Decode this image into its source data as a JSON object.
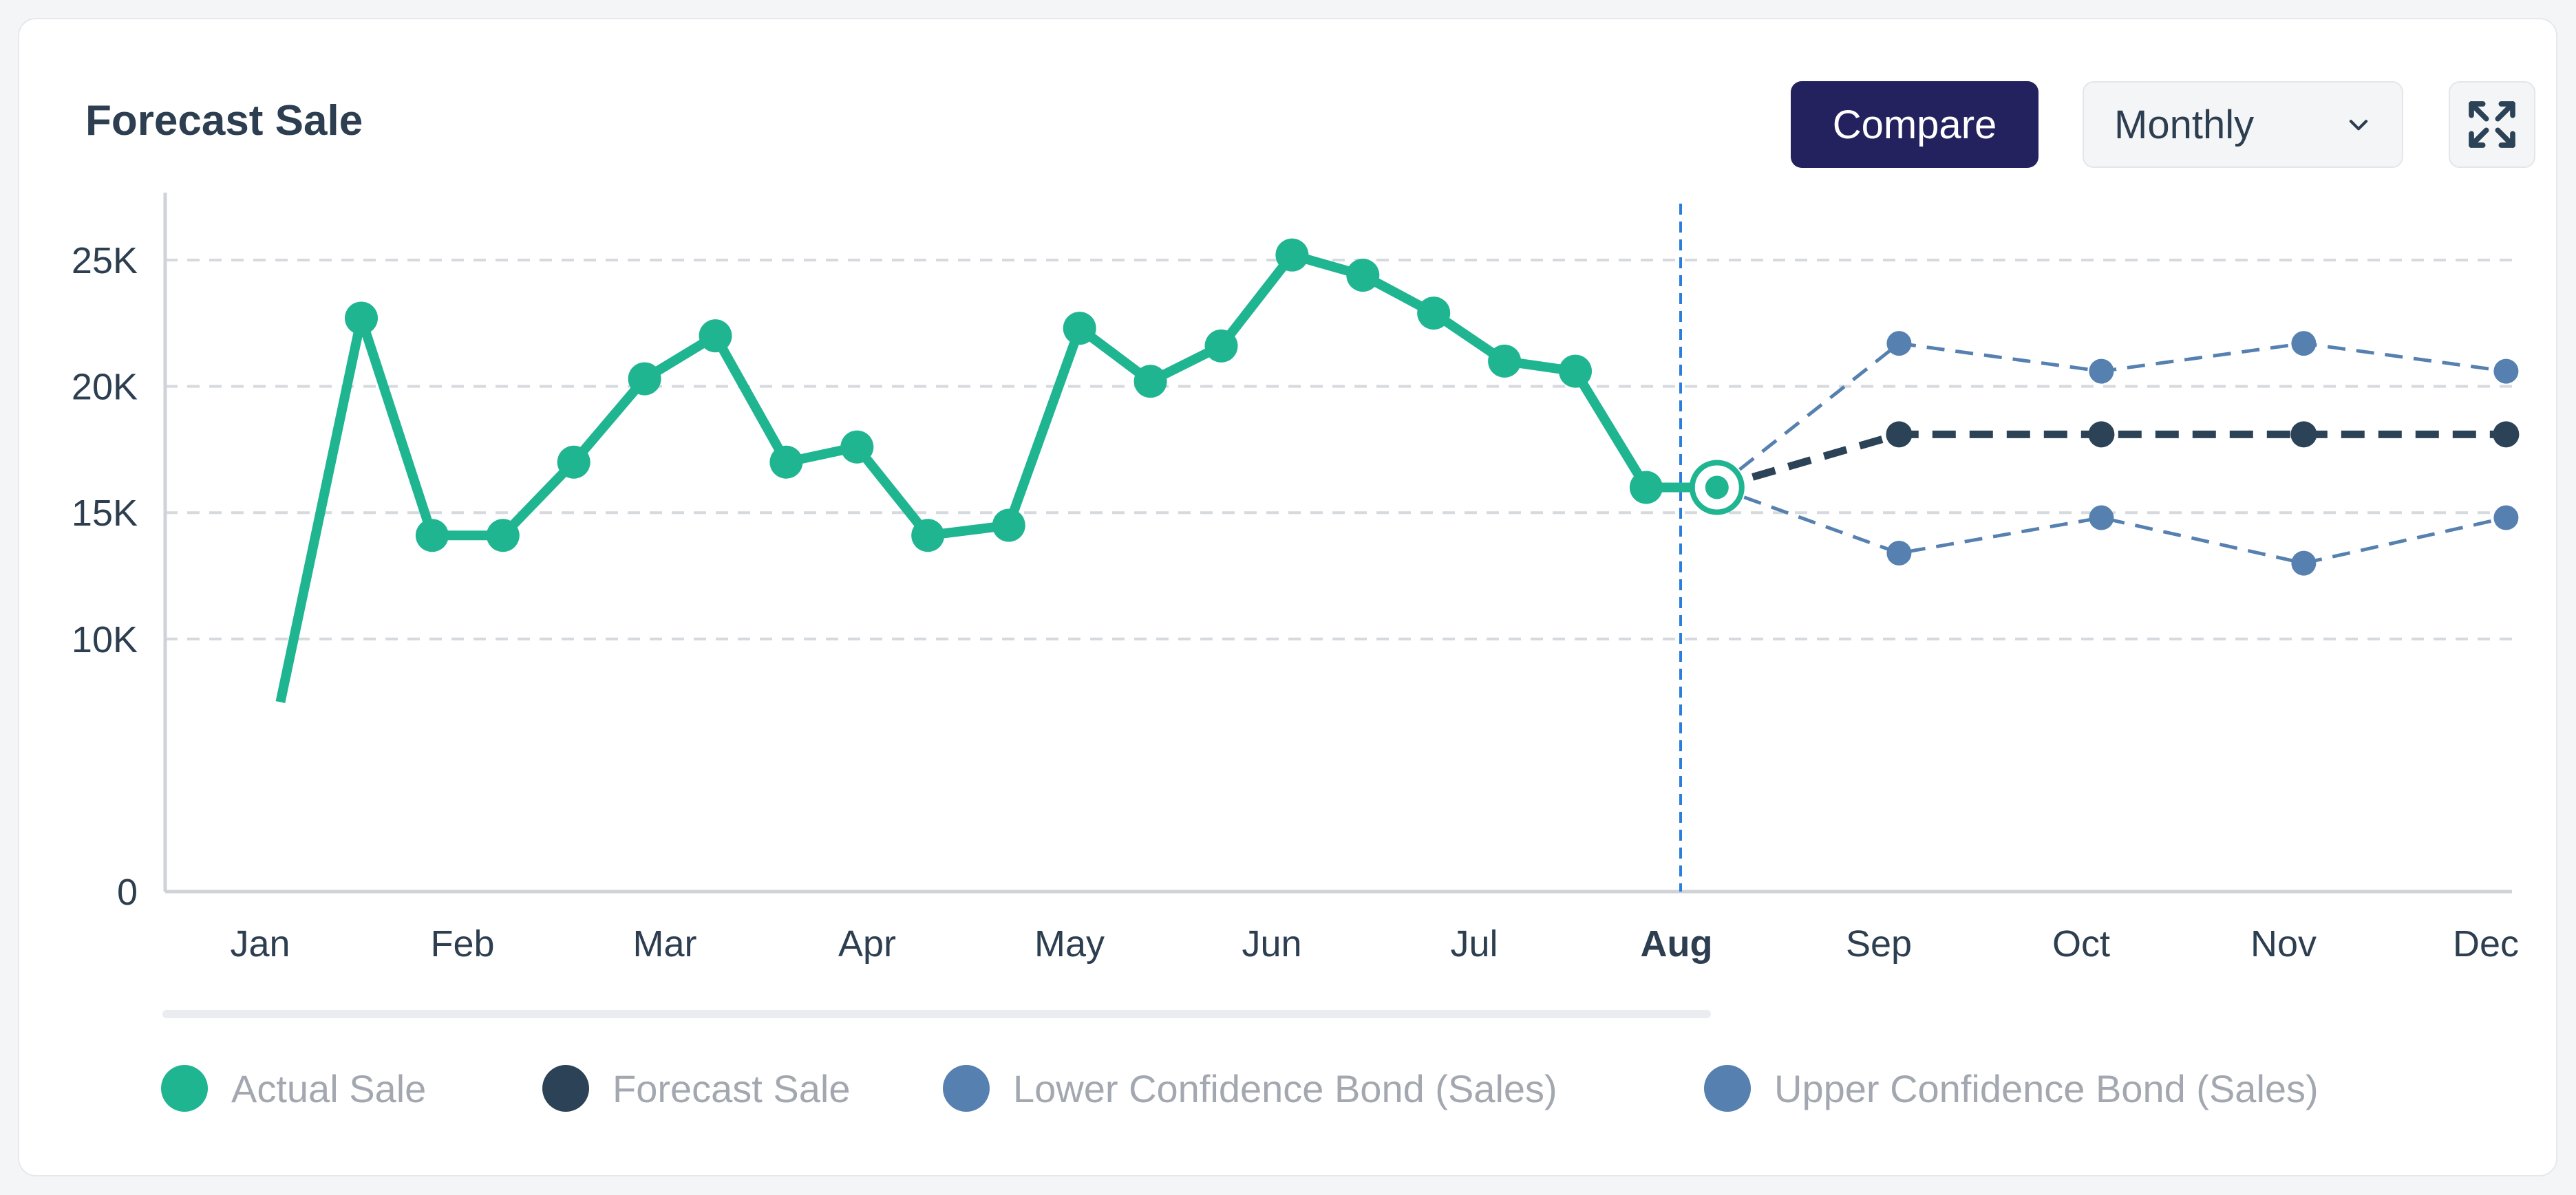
{
  "header": {
    "title": "Forecast Sale",
    "compare_label": "Compare",
    "period_selected": "Monthly",
    "expand_icon": "expand-icon"
  },
  "colors": {
    "actual": "#20b591",
    "forecast": "#2c4257",
    "band": "#5680b0",
    "highlight_month": "#2a7fdc",
    "grid": "#d6d9de"
  },
  "chart_data": {
    "type": "line",
    "title": "",
    "xlabel": "",
    "ylabel": "",
    "categories": [
      "Jan",
      "Feb",
      "Mar",
      "Apr",
      "May",
      "Jun",
      "Jul",
      "Aug",
      "Sep",
      "Oct",
      "Nov",
      "Dec"
    ],
    "highlight_category": "Aug",
    "ylim": [
      0,
      25000
    ],
    "yticks": [
      0,
      10000,
      15000,
      20000,
      25000
    ],
    "ytick_labels": [
      "0",
      "10K",
      "15K",
      "20K",
      "25K"
    ],
    "grid": true,
    "legend_position": "bottom",
    "series": [
      {
        "name": "Actual Sale",
        "style": "solid",
        "x": [
          0.1,
          0.5,
          0.85,
          1.2,
          1.55,
          1.9,
          2.25,
          2.6,
          2.95,
          3.3,
          3.7,
          4.05,
          4.4,
          4.75,
          5.1,
          5.45,
          5.8,
          6.15,
          6.5,
          6.85,
          7.2
        ],
        "values": [
          7500,
          22700,
          14100,
          14100,
          17000,
          20300,
          22000,
          17000,
          17600,
          14100,
          14500,
          22300,
          20200,
          21600,
          25200,
          24400,
          22900,
          21000,
          20600,
          16000,
          16000
        ]
      },
      {
        "name": "Forecast Sale",
        "style": "dashed",
        "x": [
          7.2,
          8.1,
          9.1,
          10.1,
          11.1
        ],
        "values": [
          16000,
          18100,
          18100,
          18100,
          18100
        ]
      },
      {
        "name": "Lower Confidence Bond (Sales)",
        "style": "dashed",
        "x": [
          7.2,
          8.1,
          9.1,
          10.1,
          11.1
        ],
        "values": [
          16000,
          13400,
          14800,
          13000,
          14800
        ]
      },
      {
        "name": "Upper Confidence Bond (Sales)",
        "style": "dashed",
        "x": [
          7.2,
          8.1,
          9.1,
          10.1,
          11.1
        ],
        "values": [
          16000,
          21700,
          20600,
          21700,
          20600
        ]
      }
    ]
  }
}
